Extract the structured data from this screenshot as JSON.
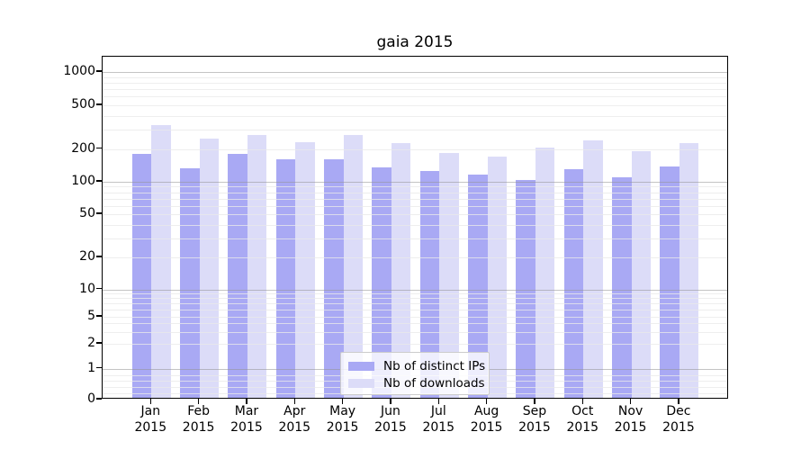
{
  "title": "gaia 2015",
  "chart_data": {
    "type": "bar",
    "title": "gaia 2015",
    "categories": [
      "Jan",
      "Feb",
      "Mar",
      "Apr",
      "May",
      "Jun",
      "Jul",
      "Aug",
      "Sep",
      "Oct",
      "Nov",
      "Dec"
    ],
    "category_year": "2015",
    "series": [
      {
        "name": "Nb of distinct IPs",
        "color": "#a9a9f4",
        "values": [
          175,
          128,
          174,
          154,
          155,
          131,
          120,
          113,
          100,
          126,
          105,
          133
        ]
      },
      {
        "name": "Nb of downloads",
        "color": "#dcdcf8",
        "values": [
          315,
          241,
          256,
          220,
          260,
          217,
          176,
          165,
          198,
          230,
          185,
          217
        ]
      }
    ],
    "yscale": "symlog",
    "ytick_values": [
      0,
      1,
      2,
      5,
      10,
      20,
      50,
      100,
      200,
      500,
      1000
    ],
    "ytick_labels": [
      "0",
      "1",
      "2",
      "5",
      "10",
      "20",
      "50",
      "100",
      "200",
      "500",
      "1000"
    ],
    "minor_grid_values": [
      0.2,
      0.4,
      0.6,
      0.8,
      2,
      3,
      4,
      5,
      6,
      7,
      8,
      9,
      20,
      30,
      40,
      50,
      60,
      70,
      80,
      90,
      200,
      300,
      400,
      500,
      600,
      700,
      800,
      900
    ],
    "major_grid_values": [
      1,
      10,
      100,
      1000
    ],
    "ylim": [
      0,
      1400
    ],
    "xlabel": "",
    "ylabel": "",
    "grid": "both",
    "legend_position": "lower center"
  },
  "legend": {
    "items": [
      {
        "label": "Nb of distinct IPs",
        "color": "#a9a9f4"
      },
      {
        "label": "Nb of downloads",
        "color": "#dcdcf8"
      }
    ]
  },
  "colors": {
    "background": "#ffffff",
    "bar_distinct_ips": "#a9a9f4",
    "bar_downloads": "#dcdcf8",
    "major_grid": "#949494",
    "minor_grid": "#e9e9e9",
    "axis": "#000000",
    "legend_border": "#cccccc",
    "text": "#000000"
  }
}
